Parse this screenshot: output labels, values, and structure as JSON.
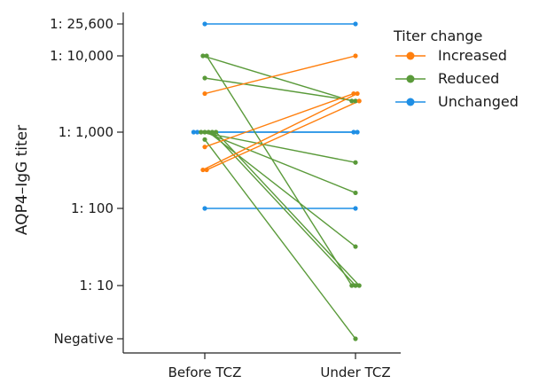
{
  "chart_data": {
    "type": "line",
    "x_categories": [
      "Before TCZ",
      "Under TCZ"
    ],
    "ylabel": "AQP4–IgG titer",
    "y_scale": "log",
    "y_ticks": [
      {
        "label": "1: 25,600",
        "value": 25600
      },
      {
        "label": "1: 10,000",
        "value": 10000
      },
      {
        "label": "1: 1,000",
        "value": 1000
      },
      {
        "label": "1: 100",
        "value": 100
      },
      {
        "label": "1: 10",
        "value": 10
      },
      {
        "label": "Negative",
        "value": 2
      }
    ],
    "legend": {
      "title": "Titer change",
      "placement": "top-right",
      "entries": [
        {
          "key": "increased",
          "label": "Increased",
          "color": "#ff7f0e"
        },
        {
          "key": "reduced",
          "label": "Reduced",
          "color": "#5a9a3a"
        },
        {
          "key": "unchanged",
          "label": "Unchanged",
          "color": "#1f8fe5"
        }
      ]
    },
    "series": [
      {
        "group": "unchanged",
        "values": [
          25600,
          25600
        ]
      },
      {
        "group": "unchanged",
        "values": [
          1000,
          1000
        ]
      },
      {
        "group": "unchanged",
        "values": [
          1000,
          1000
        ]
      },
      {
        "group": "unchanged",
        "values": [
          100,
          100
        ]
      },
      {
        "group": "increased",
        "values": [
          3200,
          10000
        ]
      },
      {
        "group": "increased",
        "values": [
          640,
          3200
        ]
      },
      {
        "group": "increased",
        "values": [
          320,
          3200
        ]
      },
      {
        "group": "increased",
        "values": [
          320,
          2560
        ]
      },
      {
        "group": "reduced",
        "values": [
          10000,
          2560
        ]
      },
      {
        "group": "reduced",
        "values": [
          10000,
          10
        ]
      },
      {
        "group": "reduced",
        "values": [
          5120,
          2560
        ]
      },
      {
        "group": "reduced",
        "values": [
          1000,
          400
        ]
      },
      {
        "group": "reduced",
        "values": [
          1000,
          160
        ]
      },
      {
        "group": "reduced",
        "values": [
          1000,
          32
        ]
      },
      {
        "group": "reduced",
        "values": [
          1000,
          10
        ]
      },
      {
        "group": "reduced",
        "values": [
          1000,
          10
        ]
      },
      {
        "group": "reduced",
        "values": [
          800,
          2
        ]
      }
    ]
  }
}
